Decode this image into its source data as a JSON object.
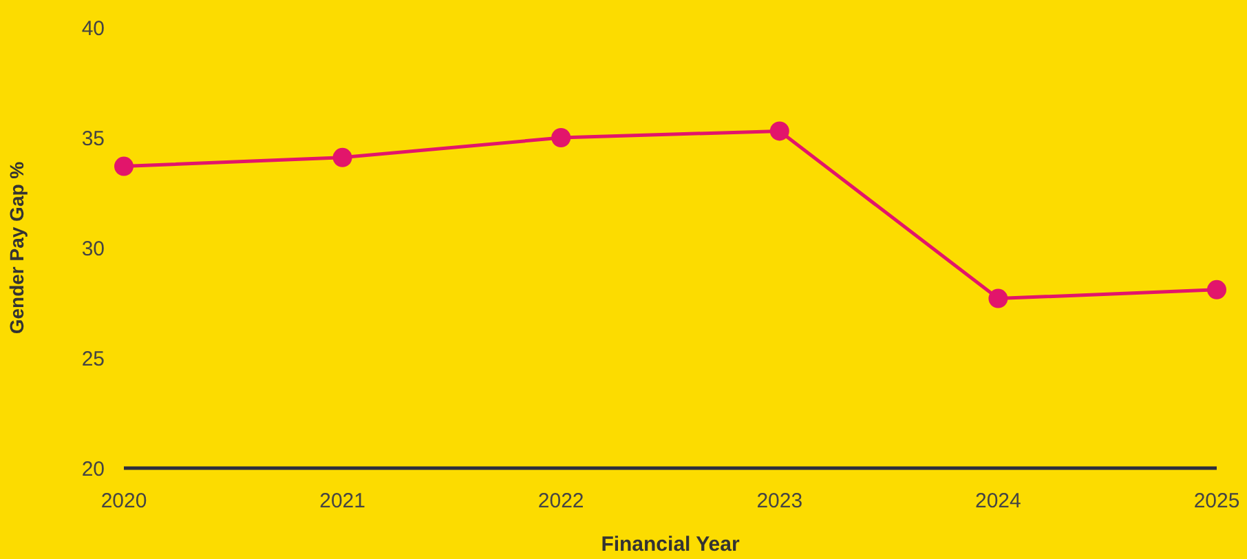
{
  "chart_data": {
    "type": "line",
    "xlabel": "Financial Year",
    "ylabel": "Gender Pay Gap %",
    "x": [
      2020,
      2021,
      2022,
      2023,
      2024,
      2025
    ],
    "series": [
      {
        "color": "#e2156b",
        "values": [
          33.7,
          34.1,
          35.0,
          35.3,
          27.7,
          28.1
        ]
      }
    ],
    "xlim": [
      2020,
      2025
    ],
    "xticks": [
      2020,
      2021,
      2022,
      2023,
      2024,
      2025
    ],
    "ylim": [
      20,
      40
    ],
    "yticks": [
      20,
      25,
      30,
      35,
      40
    ],
    "grid": false,
    "legend": false,
    "marker": "circle",
    "line_style": "solid"
  }
}
